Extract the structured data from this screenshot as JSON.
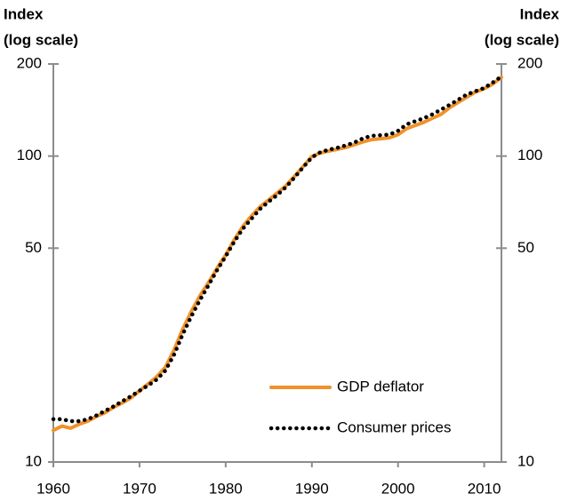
{
  "chart_data": {
    "type": "line",
    "ylabel": [
      "Index",
      "(log scale)"
    ],
    "y2label": [
      "Index",
      "(log scale)"
    ],
    "x": [
      1960,
      1961,
      1962,
      1963,
      1964,
      1965,
      1966,
      1967,
      1968,
      1969,
      1970,
      1971,
      1972,
      1973,
      1974,
      1975,
      1976,
      1977,
      1978,
      1979,
      1980,
      1981,
      1982,
      1983,
      1984,
      1985,
      1986,
      1987,
      1988,
      1989,
      1990,
      1991,
      1992,
      1993,
      1994,
      1995,
      1996,
      1997,
      1998,
      1999,
      2000,
      2001,
      2002,
      2003,
      2004,
      2005,
      2006,
      2007,
      2008,
      2009,
      2010,
      2011,
      2012
    ],
    "series": [
      {
        "name": "GDP deflator",
        "color": "#f0922b",
        "style": "solid",
        "values": [
          12.7,
          13.1,
          12.9,
          13.3,
          13.6,
          14.1,
          14.5,
          15.1,
          15.6,
          16.2,
          17.1,
          18.0,
          19.0,
          20.4,
          23.2,
          27.1,
          31.0,
          34.9,
          38.6,
          43.0,
          47.5,
          53.3,
          58.9,
          63.8,
          68.3,
          71.9,
          75.8,
          80.0,
          86.0,
          92.5,
          99.7,
          102.5,
          103.9,
          105.3,
          106.8,
          109.1,
          111.4,
          113.3,
          114.0,
          114.8,
          117.5,
          123,
          126,
          129,
          133,
          137,
          144,
          150,
          156,
          162,
          166,
          172,
          181
        ]
      },
      {
        "name": "Consumer prices",
        "color": "#000000",
        "style": "dotted",
        "values": [
          13.8,
          13.8,
          13.6,
          13.6,
          13.8,
          14.2,
          14.7,
          15.2,
          15.8,
          16.4,
          17.1,
          17.8,
          18.6,
          19.9,
          22.4,
          26.1,
          29.9,
          33.8,
          37.8,
          42.4,
          47.0,
          52.5,
          57.9,
          62.4,
          67.2,
          71.0,
          74.7,
          79.2,
          85.2,
          92.0,
          99.0,
          103.0,
          105.0,
          106.5,
          108.5,
          111.0,
          114.5,
          116.5,
          117.0,
          117.5,
          121,
          127,
          130,
          133,
          137,
          142,
          147,
          153,
          159,
          163,
          167,
          174,
          182
        ]
      }
    ],
    "log_scale": true,
    "xlim": [
      1960,
      2012
    ],
    "xticks": [
      1960,
      1970,
      1980,
      1990,
      2000,
      2010
    ],
    "ylim": [
      10,
      200
    ],
    "yticks": [
      10,
      50,
      100,
      200
    ],
    "y2lim": [
      10,
      200
    ],
    "y2ticks": [
      10,
      50,
      100,
      200
    ],
    "legend": "bottom-right",
    "grid": false
  }
}
